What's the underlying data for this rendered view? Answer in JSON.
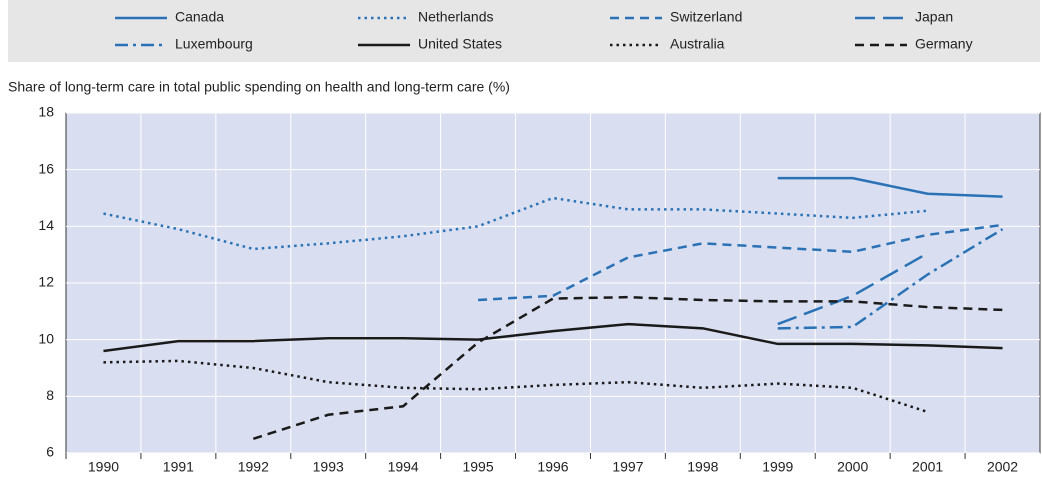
{
  "chart_data": {
    "type": "line",
    "y_label": "Share of long-term care in total public spending on health and long-term care (%)",
    "categories": [
      "1990",
      "1991",
      "1992",
      "1993",
      "1994",
      "1995",
      "1996",
      "1997",
      "1998",
      "1999",
      "2000",
      "2001",
      "2002"
    ],
    "ylim": [
      6,
      18
    ],
    "yticks": [
      6,
      8,
      10,
      12,
      14,
      16,
      18
    ],
    "grid": true,
    "legend": "top",
    "series": [
      {
        "name": "Canada",
        "color": "#2a72b5",
        "dash": "solid",
        "values": [
          null,
          null,
          null,
          null,
          null,
          null,
          null,
          null,
          null,
          15.7,
          15.7,
          15.15,
          15.05
        ]
      },
      {
        "name": "Netherlands",
        "color": "#2a72b5",
        "dash": "dotted",
        "values": [
          14.45,
          13.9,
          13.2,
          13.4,
          13.65,
          14.0,
          15.0,
          14.6,
          14.6,
          14.45,
          14.3,
          14.55,
          null
        ]
      },
      {
        "name": "Switzerland",
        "color": "#2a72b5",
        "dash": "dashed",
        "values": [
          null,
          null,
          null,
          null,
          null,
          11.4,
          11.55,
          12.9,
          13.4,
          13.25,
          13.1,
          13.7,
          14.05
        ]
      },
      {
        "name": "Japan",
        "color": "#2a72b5",
        "dash": "long-dash",
        "values": [
          null,
          null,
          null,
          null,
          null,
          null,
          null,
          null,
          null,
          10.55,
          11.55,
          13.05,
          null
        ]
      },
      {
        "name": "Luxembourg",
        "color": "#2a72b5",
        "dash": "dash-dot",
        "values": [
          null,
          null,
          null,
          null,
          null,
          null,
          null,
          null,
          null,
          10.4,
          10.45,
          12.3,
          13.9
        ]
      },
      {
        "name": "United States",
        "color": "#1a1a1a",
        "dash": "solid",
        "values": [
          9.6,
          9.95,
          9.95,
          10.05,
          10.05,
          10.0,
          10.3,
          10.55,
          10.4,
          9.85,
          9.85,
          9.8,
          9.7
        ]
      },
      {
        "name": "Australia",
        "color": "#1a1a1a",
        "dash": "dotted",
        "values": [
          9.2,
          9.25,
          9.0,
          8.5,
          8.3,
          8.25,
          8.4,
          8.5,
          8.3,
          8.45,
          8.3,
          7.45,
          null
        ]
      },
      {
        "name": "Germany",
        "color": "#1a1a1a",
        "dash": "dashed",
        "values": [
          null,
          null,
          6.5,
          7.35,
          7.65,
          9.9,
          11.45,
          11.5,
          11.4,
          11.35,
          11.35,
          11.15,
          11.05
        ]
      }
    ]
  }
}
